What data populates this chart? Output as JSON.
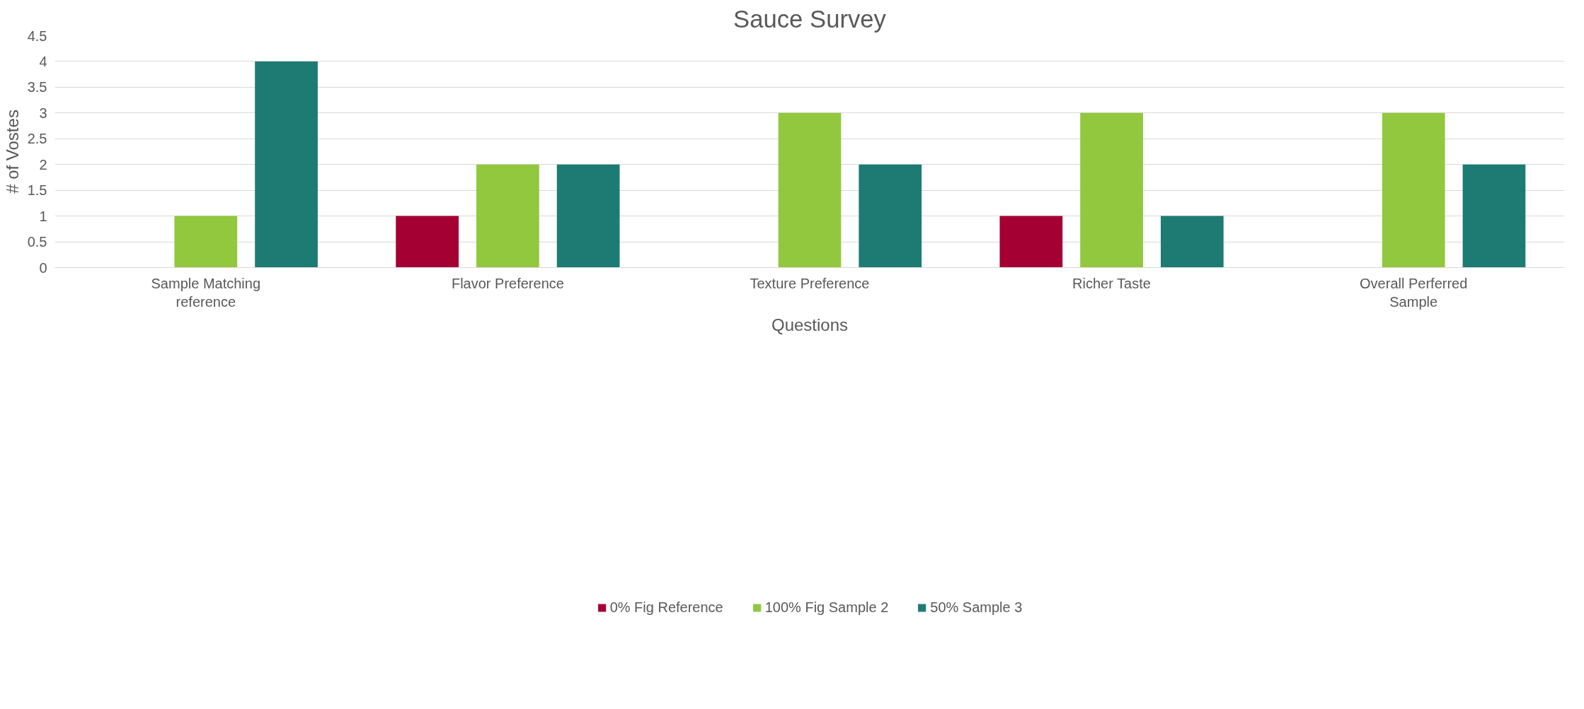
{
  "chart_data": {
    "type": "bar",
    "title": "Sauce Survey",
    "xlabel": "Questions",
    "ylabel": "# of Vostes",
    "categories": [
      "Sample Matching reference",
      "Flavor Preference",
      "Texture Preference",
      "Richer Taste",
      "Overall Perferred Sample"
    ],
    "series": [
      {
        "name": "0% Fig Reference",
        "color": "#a50034",
        "values": [
          0,
          1,
          0,
          1,
          0
        ]
      },
      {
        "name": "100% Fig Sample 2",
        "color": "#92c83e",
        "values": [
          1,
          2,
          3,
          3,
          3
        ]
      },
      {
        "name": "50% Sample 3",
        "color": "#1e7b73",
        "values": [
          4,
          2,
          2,
          1,
          2
        ]
      }
    ],
    "ylim": [
      0,
      4.5
    ],
    "yticks": [
      0,
      0.5,
      1,
      1.5,
      2,
      2.5,
      3,
      3.5,
      4,
      4.5
    ],
    "grid": "y",
    "legend": "bottom"
  }
}
